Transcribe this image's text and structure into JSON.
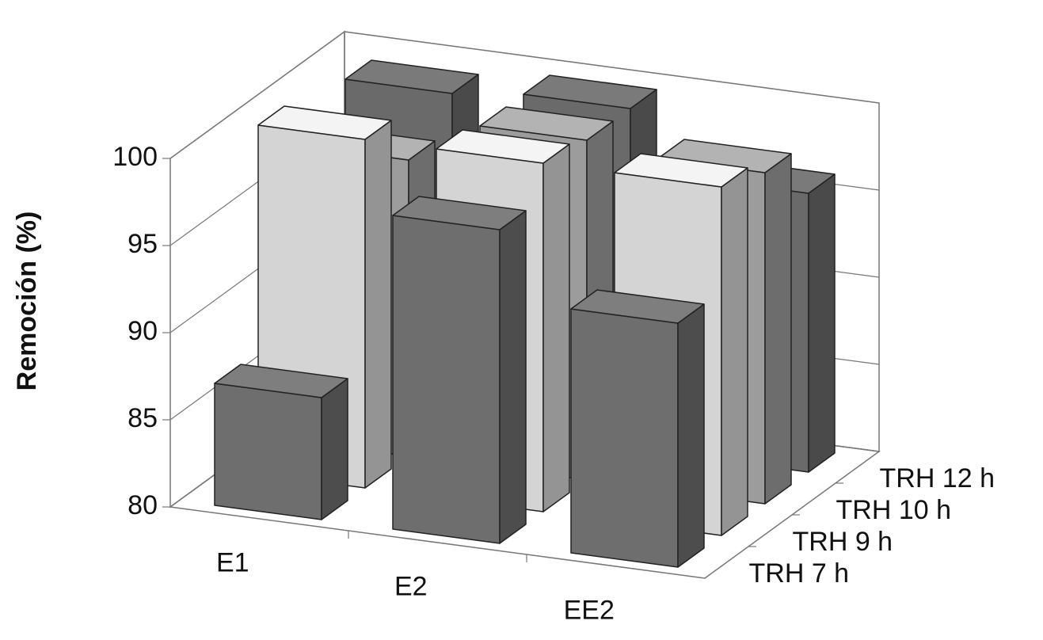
{
  "chart_data": {
    "type": "bar3d",
    "y_axis_label": "Remoción (%)",
    "categories": [
      "E1",
      "E2",
      "EE2"
    ],
    "series": [
      {
        "name": "TRH 7 h",
        "color": "#6e6e6e",
        "values": [
          87,
          98,
          94
        ]
      },
      {
        "name": "TRH 9 h",
        "color": "#d4d4d4",
        "values": [
          100,
          100,
          100
        ]
      },
      {
        "name": "TRH 10 h",
        "color": "#9c9c9c",
        "values": [
          97,
          99.5,
          99
        ]
      },
      {
        "name": "TRH 12 h",
        "color": "#6a6a6a",
        "values": [
          99,
          99.5,
          96
        ]
      }
    ],
    "ylim": [
      80,
      100
    ],
    "yticks": [
      80,
      85,
      90,
      95,
      100
    ],
    "grid": true
  }
}
